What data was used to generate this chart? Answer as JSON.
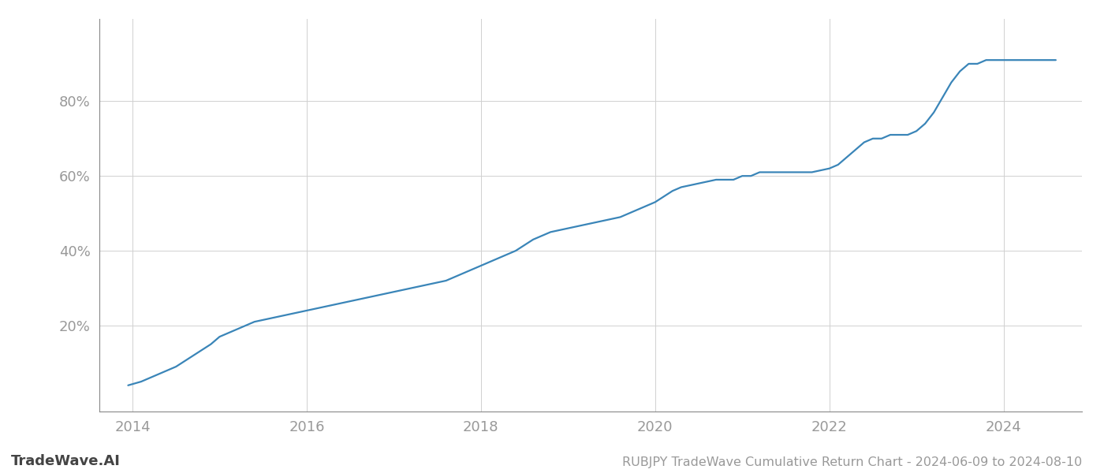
{
  "title": "RUBJPY TradeWave Cumulative Return Chart - 2024-06-09 to 2024-08-10",
  "watermark": "TradeWave.AI",
  "line_color": "#3a85b8",
  "background_color": "#ffffff",
  "grid_color": "#d0d0d0",
  "x_years": [
    2013.95,
    2014.1,
    2014.3,
    2014.5,
    2014.7,
    2014.9,
    2015.0,
    2015.1,
    2015.2,
    2015.4,
    2015.6,
    2015.8,
    2016.0,
    2016.2,
    2016.4,
    2016.6,
    2016.8,
    2017.0,
    2017.2,
    2017.4,
    2017.6,
    2017.8,
    2018.0,
    2018.2,
    2018.4,
    2018.6,
    2018.8,
    2019.0,
    2019.2,
    2019.4,
    2019.6,
    2019.8,
    2020.0,
    2020.2,
    2020.3,
    2020.5,
    2020.7,
    2020.9,
    2021.0,
    2021.1,
    2021.2,
    2021.4,
    2021.6,
    2021.8,
    2022.0,
    2022.1,
    2022.2,
    2022.3,
    2022.4,
    2022.5,
    2022.6,
    2022.7,
    2022.8,
    2022.9,
    2023.0,
    2023.1,
    2023.2,
    2023.3,
    2023.4,
    2023.5,
    2023.6,
    2023.7,
    2023.8,
    2024.0,
    2024.3,
    2024.6
  ],
  "y_values": [
    4,
    5,
    7,
    9,
    12,
    15,
    17,
    18,
    19,
    21,
    22,
    23,
    24,
    25,
    26,
    27,
    28,
    29,
    30,
    31,
    32,
    34,
    36,
    38,
    40,
    43,
    45,
    46,
    47,
    48,
    49,
    51,
    53,
    56,
    57,
    58,
    59,
    59,
    60,
    60,
    61,
    61,
    61,
    61,
    62,
    63,
    65,
    67,
    69,
    70,
    70,
    71,
    71,
    71,
    72,
    74,
    77,
    81,
    85,
    88,
    90,
    90,
    91,
    91,
    91,
    91
  ],
  "yticks": [
    20,
    40,
    60,
    80
  ],
  "xlim": [
    2013.62,
    2024.9
  ],
  "ylim": [
    -3,
    102
  ],
  "xticks": [
    2014,
    2016,
    2018,
    2020,
    2022,
    2024
  ],
  "tick_color": "#999999",
  "label_fontsize": 13,
  "watermark_fontsize": 13,
  "title_fontsize": 11.5,
  "line_width": 1.6
}
